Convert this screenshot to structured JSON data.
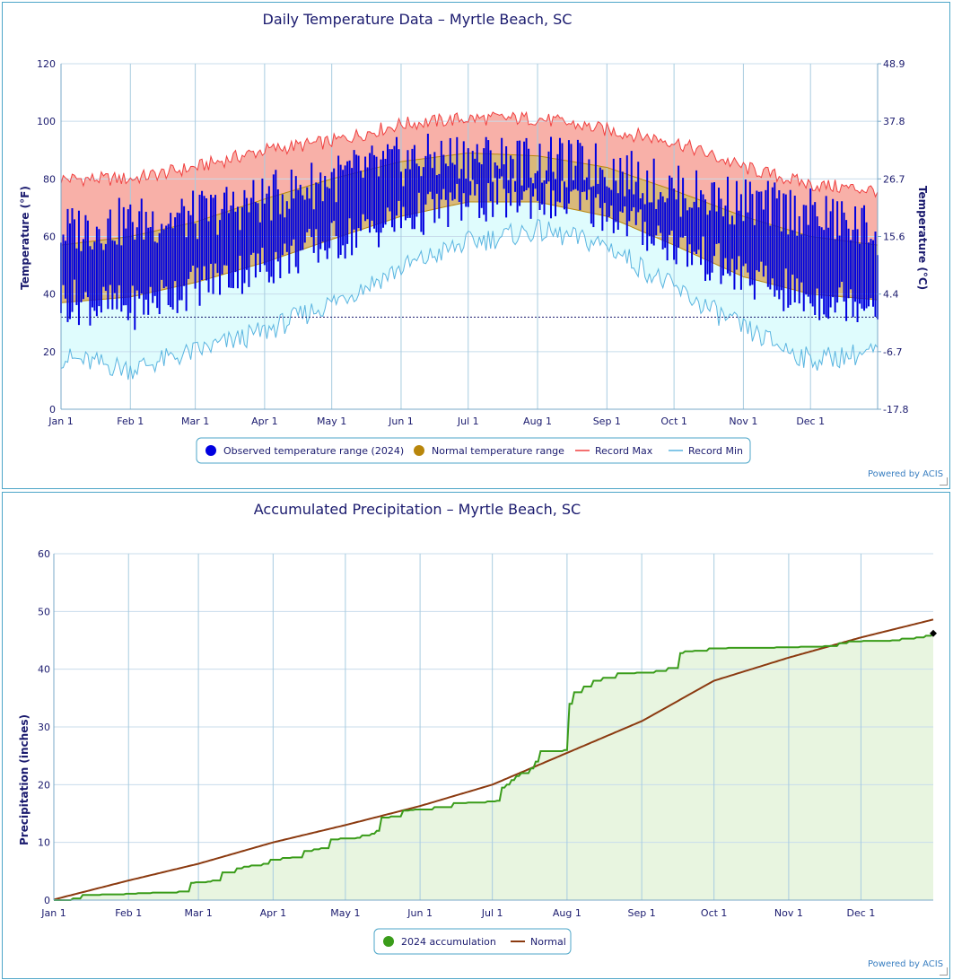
{
  "temperature_chart": {
    "title": "Daily Temperature Data – Myrtle Beach, SC",
    "ylabel_left": "Temperature (°F)",
    "ylabel_right": "Temperature (°C)",
    "powered_by": "Powered by ACIS"
  },
  "precip_chart": {
    "title": "Accumulated Precipitation – Myrtle Beach, SC",
    "ylabel": "Precipitation (inches)",
    "powered_by": "Powered by ACIS"
  },
  "chart_data": [
    {
      "type": "area",
      "title": "Daily Temperature Data – Myrtle Beach, SC",
      "xlabel": "",
      "ylabel": "Temperature (°F)",
      "ylabel_right": "Temperature (°C)",
      "ylim": [
        0,
        120
      ],
      "yticks": [
        0,
        20,
        40,
        60,
        80,
        100,
        120
      ],
      "yticks_right": [
        "-17.8",
        "-6.7",
        "4.4",
        "15.6",
        "26.7",
        "37.8",
        "48.9"
      ],
      "x_tick_labels": [
        "Jan 1",
        "Feb 1",
        "Mar 1",
        "Apr 1",
        "May 1",
        "Jun 1",
        "Jul 1",
        "Aug 1",
        "Sep 1",
        "Oct 1",
        "Nov 1",
        "Dec 1"
      ],
      "x_tick_days": [
        0,
        31,
        60,
        91,
        121,
        152,
        182,
        213,
        244,
        274,
        305,
        335
      ],
      "days_in_year": 366,
      "freezing_line_f": 32,
      "grid": true,
      "legend_position": "bottom-center",
      "legend": [
        {
          "label": "Observed temperature range (2024)",
          "marker": "circle",
          "color": "#0000e0"
        },
        {
          "label": "Normal temperature range",
          "marker": "circle",
          "color": "#b8860b"
        },
        {
          "label": "Record Max",
          "marker": "line",
          "color": "#f04040"
        },
        {
          "label": "Record Min",
          "marker": "line",
          "color": "#5ab4e0"
        }
      ],
      "colors": {
        "observed": "#0000e0",
        "normal_fill": "#d9b97a",
        "normal_line": "#b8860b",
        "record_max_line": "#f04040",
        "record_max_fill": "#f8b0a8",
        "record_min_line": "#5ab4e0",
        "record_min_fill": "#dffcfd"
      },
      "series": [
        {
          "name": "Record Max",
          "x": [
            0,
            31,
            60,
            91,
            121,
            152,
            182,
            213,
            244,
            274,
            305,
            335,
            365
          ],
          "values": [
            80,
            80,
            84,
            90,
            93,
            99,
            101,
            101,
            97,
            93,
            84,
            78,
            76
          ]
        },
        {
          "name": "Normal temperature range (high)",
          "x": [
            0,
            31,
            60,
            91,
            121,
            152,
            182,
            213,
            244,
            274,
            305,
            335,
            365
          ],
          "values": [
            57,
            60,
            65,
            73,
            80,
            86,
            89,
            88,
            84,
            76,
            67,
            60,
            57
          ]
        },
        {
          "name": "Normal temperature range (low)",
          "x": [
            0,
            31,
            60,
            91,
            121,
            152,
            182,
            213,
            244,
            274,
            305,
            335,
            365
          ],
          "values": [
            37,
            39,
            44,
            51,
            59,
            67,
            72,
            72,
            67,
            57,
            46,
            40,
            38
          ]
        },
        {
          "name": "Record Min",
          "x": [
            0,
            31,
            60,
            91,
            121,
            152,
            182,
            213,
            244,
            274,
            305,
            335,
            365
          ],
          "values": [
            18,
            14,
            20,
            27,
            37,
            49,
            58,
            62,
            57,
            42,
            28,
            17,
            20
          ]
        },
        {
          "name": "Observed temperature range (2024) (max)",
          "x": [
            0,
            31,
            60,
            91,
            121,
            152,
            182,
            213,
            244,
            274,
            305,
            335,
            365
          ],
          "values": [
            62,
            65,
            67,
            73,
            80,
            86,
            88,
            86,
            84,
            76,
            72,
            68,
            62
          ]
        },
        {
          "name": "Observed temperature range (2024) (min)",
          "x": [
            0,
            31,
            60,
            91,
            121,
            152,
            182,
            213,
            244,
            274,
            305,
            335,
            365
          ],
          "values": [
            38,
            35,
            43,
            50,
            58,
            66,
            72,
            74,
            69,
            57,
            46,
            38,
            38
          ]
        }
      ]
    },
    {
      "type": "line",
      "title": "Accumulated Precipitation – Myrtle Beach, SC",
      "xlabel": "",
      "ylabel": "Precipitation (inches)",
      "ylim": [
        0,
        60
      ],
      "yticks": [
        0,
        10,
        20,
        30,
        40,
        50,
        60
      ],
      "x_tick_labels": [
        "Jan 1",
        "Feb 1",
        "Mar 1",
        "Apr 1",
        "May 1",
        "Jun 1",
        "Jul 1",
        "Aug 1",
        "Sep 1",
        "Oct 1",
        "Nov 1",
        "Dec 1"
      ],
      "x_tick_days": [
        0,
        31,
        60,
        91,
        121,
        152,
        182,
        213,
        244,
        274,
        305,
        335
      ],
      "days_in_year": 366,
      "grid": true,
      "legend_position": "bottom-center",
      "legend": [
        {
          "label": "2024 accumulation",
          "marker": "circle",
          "color": "#3a9c1a"
        },
        {
          "label": "Normal",
          "marker": "line",
          "color": "#8b3a10"
        }
      ],
      "colors": {
        "accum": "#3a9c1a",
        "accum_fill": "#e8f5e0",
        "normal": "#8b3a10"
      },
      "series": [
        {
          "name": "2024 accumulation",
          "x": [
            0,
            8,
            12,
            20,
            30,
            35,
            41,
            46,
            52,
            57,
            59,
            60,
            64,
            66,
            70,
            76,
            79,
            82,
            87,
            90,
            95,
            99,
            104,
            108,
            111,
            115,
            119,
            126,
            128,
            132,
            134,
            136,
            140,
            145,
            148,
            150,
            158,
            166,
            172,
            180,
            184,
            186,
            188,
            190,
            192,
            194,
            198,
            200,
            202,
            204,
            210,
            212,
            214,
            216,
            220,
            224,
            228,
            234,
            242,
            250,
            255,
            260,
            262,
            266,
            272,
            280,
            290,
            300,
            310,
            320,
            326,
            330,
            336,
            342,
            348,
            352,
            358,
            362,
            365
          ],
          "values": [
            0,
            0.3,
            0.9,
            1.0,
            1.1,
            1.2,
            1.3,
            1.3,
            1.5,
            3.0,
            3.1,
            3.1,
            3.2,
            3.4,
            4.8,
            5.5,
            5.8,
            6.0,
            6.3,
            7.0,
            7.3,
            7.4,
            8.5,
            8.8,
            9.0,
            10.5,
            10.7,
            10.8,
            11.2,
            11.5,
            12.0,
            14.3,
            14.5,
            15.5,
            15.6,
            15.7,
            16.1,
            16.8,
            16.9,
            17.1,
            17.2,
            19.5,
            20.0,
            20.8,
            21.5,
            22.0,
            22.8,
            24.0,
            25.8,
            25.8,
            25.8,
            26.0,
            34.0,
            36.0,
            37.0,
            38.0,
            38.5,
            39.3,
            39.4,
            39.7,
            40.2,
            42.8,
            43.1,
            43.2,
            43.6,
            43.7,
            43.7,
            43.8,
            43.9,
            44.0,
            44.5,
            44.8,
            44.9,
            44.9,
            45.0,
            45.3,
            45.5,
            45.8,
            46.2
          ]
        },
        {
          "name": "Normal",
          "x": [
            0,
            31,
            60,
            91,
            121,
            152,
            182,
            213,
            244,
            274,
            305,
            335,
            365
          ],
          "values": [
            0.1,
            3.4,
            6.3,
            10.0,
            13.0,
            16.3,
            20.0,
            25.5,
            31.0,
            38.0,
            42.0,
            45.5,
            48.6
          ]
        }
      ]
    }
  ]
}
